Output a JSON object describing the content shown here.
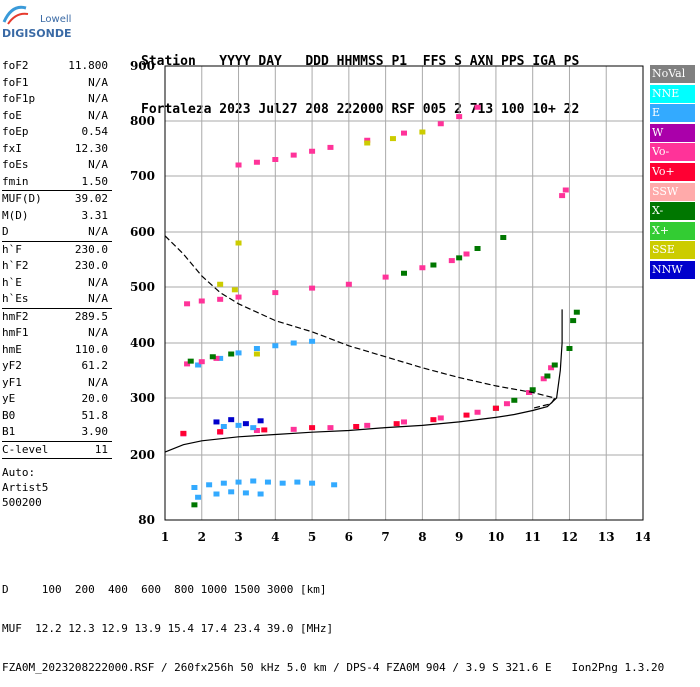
{
  "logo": {
    "line1": "Lowell",
    "line2": "DIGISONDE"
  },
  "header": {
    "labels": "Station   YYYY DAY   DDD HHMMSS P1  FFS S AXN PPS IGA PS",
    "values": "Fortaleza 2023 Jul27 208 222000 RSF 005 2 713 100 10+ 22"
  },
  "params": {
    "group1": [
      {
        "name": "foF2",
        "value": "11.800"
      },
      {
        "name": "foF1",
        "value": "N/A"
      },
      {
        "name": "foF1p",
        "value": "N/A"
      },
      {
        "name": "foE",
        "value": "N/A"
      },
      {
        "name": "foEp",
        "value": "0.54"
      },
      {
        "name": "fxI",
        "value": "12.30"
      },
      {
        "name": "foEs",
        "value": "N/A"
      },
      {
        "name": "fmin",
        "value": "1.50"
      }
    ],
    "group2": [
      {
        "name": "MUF(D)",
        "value": "39.02"
      },
      {
        "name": "M(D)",
        "value": "3.31"
      },
      {
        "name": "D",
        "value": "N/A"
      }
    ],
    "group3": [
      {
        "name": "h`F",
        "value": "230.0"
      },
      {
        "name": "h`F2",
        "value": "230.0"
      },
      {
        "name": "h`E",
        "value": "N/A"
      },
      {
        "name": "h`Es",
        "value": "N/A"
      }
    ],
    "group4": [
      {
        "name": "hmF2",
        "value": "289.5"
      },
      {
        "name": "hmF1",
        "value": "N/A"
      },
      {
        "name": "hmE",
        "value": "110.0"
      },
      {
        "name": "yF2",
        "value": "61.2"
      },
      {
        "name": "yF1",
        "value": "N/A"
      },
      {
        "name": "yE",
        "value": "20.0"
      },
      {
        "name": "B0",
        "value": "51.8"
      },
      {
        "name": "B1",
        "value": "3.90"
      }
    ],
    "clevel": {
      "name": "C-level",
      "value": "11"
    },
    "auto": [
      "Auto:",
      "Artist5",
      "500200"
    ]
  },
  "legend": [
    {
      "label": "NoVal",
      "color": "#808080"
    },
    {
      "label": "NNE",
      "color": "#00ffff"
    },
    {
      "label": "E",
      "color": "#33aaff"
    },
    {
      "label": "W",
      "color": "#aa00aa"
    },
    {
      "label": "Vo-",
      "color": "#ff3399"
    },
    {
      "label": "Vo+",
      "color": "#ff0033"
    },
    {
      "label": "SSW",
      "color": "#ffaaaa"
    },
    {
      "label": "X-",
      "color": "#007700"
    },
    {
      "label": "X+",
      "color": "#33cc33"
    },
    {
      "label": "SSE",
      "color": "#cccc00"
    },
    {
      "label": "NNW",
      "color": "#0000cc"
    }
  ],
  "footer": {
    "line1": "D     100  200  400  600  800 1000 1500 3000 [km]",
    "line2": "MUF  12.2 12.3 12.9 13.9 15.4 17.4 23.4 39.0 [MHz]",
    "line3": "FZA0M_2023208222000.RSF / 260fx256h 50 kHz 5.0 km / DPS-4 FZA0M 904 / 3.9 S 321.6 E   Ion2Png 1.3.20"
  },
  "chart_data": {
    "type": "scatter",
    "xlim": [
      1,
      14
    ],
    "ylim": [
      80,
      900
    ],
    "xticks": [
      "1",
      "2",
      "3",
      "4",
      "5",
      "6",
      "7",
      "8",
      "9",
      "10",
      "11",
      "12",
      "13",
      "14"
    ],
    "yticks": [
      "80",
      "200",
      "300",
      "400",
      "500",
      "600",
      "700",
      "800",
      "900"
    ],
    "grid": true,
    "series": [
      {
        "color": "#ff3399",
        "points": [
          [
            1.5,
            237
          ],
          [
            2.5,
            240
          ],
          [
            3.5,
            243
          ],
          [
            4.5,
            245
          ],
          [
            5.5,
            248
          ],
          [
            6.5,
            252
          ],
          [
            7.5,
            258
          ],
          [
            8.5,
            265
          ],
          [
            9.5,
            275
          ],
          [
            10.3,
            290
          ],
          [
            10.9,
            310
          ],
          [
            11.3,
            335
          ],
          [
            11.5,
            355
          ]
        ]
      },
      {
        "color": "#007700",
        "points": [
          [
            10.0,
            282
          ],
          [
            10.5,
            296
          ],
          [
            11.0,
            315
          ],
          [
            11.4,
            340
          ],
          [
            11.6,
            360
          ],
          [
            12.0,
            390
          ],
          [
            12.1,
            440
          ],
          [
            12.2,
            455
          ]
        ]
      },
      {
        "color": "#ff0033",
        "points": [
          [
            1.5,
            238
          ],
          [
            2.5,
            241
          ],
          [
            3.7,
            244
          ],
          [
            5.0,
            248
          ],
          [
            6.2,
            250
          ],
          [
            7.3,
            255
          ],
          [
            8.3,
            262
          ],
          [
            9.2,
            270
          ],
          [
            10.0,
            282
          ]
        ]
      },
      {
        "color": "#33aaff",
        "points": [
          [
            2.6,
            250
          ],
          [
            3.0,
            252
          ],
          [
            3.4,
            248
          ],
          [
            1.9,
            360
          ],
          [
            2.5,
            372
          ],
          [
            3.0,
            382
          ],
          [
            3.5,
            390
          ],
          [
            4.0,
            395
          ],
          [
            4.5,
            400
          ],
          [
            5.0,
            403
          ],
          [
            1.8,
            140
          ],
          [
            2.2,
            145
          ],
          [
            2.6,
            148
          ],
          [
            3.0,
            150
          ],
          [
            3.4,
            152
          ],
          [
            3.8,
            150
          ],
          [
            4.2,
            148
          ],
          [
            4.6,
            150
          ],
          [
            5.0,
            148
          ],
          [
            5.6,
            145
          ],
          [
            1.9,
            122
          ],
          [
            2.4,
            128
          ],
          [
            2.8,
            132
          ],
          [
            3.2,
            130
          ],
          [
            3.6,
            128
          ]
        ]
      },
      {
        "color": "#ff3399",
        "points": [
          [
            1.6,
            362
          ],
          [
            2.0,
            366
          ],
          [
            2.4,
            372
          ],
          [
            1.6,
            470
          ],
          [
            2.0,
            475
          ],
          [
            2.5,
            478
          ],
          [
            3.0,
            482
          ],
          [
            4.0,
            490
          ],
          [
            5.0,
            498
          ],
          [
            6.0,
            505
          ],
          [
            7.0,
            518
          ],
          [
            8.0,
            535
          ],
          [
            8.8,
            548
          ],
          [
            9.2,
            560
          ],
          [
            3.0,
            720
          ],
          [
            3.5,
            725
          ],
          [
            4.0,
            730
          ],
          [
            4.5,
            738
          ],
          [
            5.0,
            745
          ],
          [
            5.5,
            752
          ],
          [
            6.5,
            765
          ],
          [
            7.5,
            778
          ],
          [
            8.5,
            795
          ],
          [
            9.0,
            808
          ],
          [
            9.5,
            825
          ],
          [
            11.8,
            665
          ],
          [
            11.9,
            675
          ]
        ]
      },
      {
        "color": "#007700",
        "points": [
          [
            1.7,
            367
          ],
          [
            2.3,
            375
          ],
          [
            2.8,
            380
          ],
          [
            7.5,
            525
          ],
          [
            8.3,
            540
          ],
          [
            9.0,
            553
          ],
          [
            9.5,
            570
          ],
          [
            1.8,
            108
          ],
          [
            10.2,
            590
          ]
        ]
      },
      {
        "color": "#cccc00",
        "points": [
          [
            2.5,
            505
          ],
          [
            2.9,
            495
          ],
          [
            3.5,
            380
          ],
          [
            6.5,
            760
          ],
          [
            7.2,
            768
          ],
          [
            8.0,
            780
          ],
          [
            3.0,
            580
          ]
        ]
      },
      {
        "color": "#0000cc",
        "points": [
          [
            2.4,
            258
          ],
          [
            2.8,
            262
          ],
          [
            3.2,
            255
          ],
          [
            3.6,
            260
          ]
        ]
      }
    ],
    "curves": [
      {
        "style": "solid",
        "points": [
          [
            1.0,
            205
          ],
          [
            1.5,
            218
          ],
          [
            2.0,
            225
          ],
          [
            3.0,
            232
          ],
          [
            4.0,
            236
          ],
          [
            5.0,
            240
          ],
          [
            6.0,
            243
          ],
          [
            7.0,
            248
          ],
          [
            8.0,
            252
          ],
          [
            9.0,
            258
          ],
          [
            10.0,
            266
          ],
          [
            10.5,
            271
          ],
          [
            11.0,
            278
          ],
          [
            11.4,
            285
          ],
          [
            11.65,
            300
          ],
          [
            11.75,
            350
          ],
          [
            11.8,
            400
          ],
          [
            11.8,
            460
          ]
        ]
      },
      {
        "style": "dashed",
        "points": [
          [
            1.0,
            593
          ],
          [
            1.5,
            560
          ],
          [
            2.0,
            520
          ],
          [
            2.5,
            490
          ],
          [
            3.0,
            470
          ],
          [
            3.5,
            455
          ],
          [
            4.0,
            440
          ],
          [
            5.0,
            420
          ],
          [
            6.0,
            395
          ],
          [
            7.0,
            375
          ],
          [
            8.0,
            355
          ],
          [
            9.0,
            337
          ],
          [
            10.0,
            322
          ],
          [
            11.0,
            310
          ],
          [
            11.6,
            300
          ],
          [
            11.5,
            290
          ],
          [
            11.0,
            282
          ]
        ]
      }
    ]
  }
}
